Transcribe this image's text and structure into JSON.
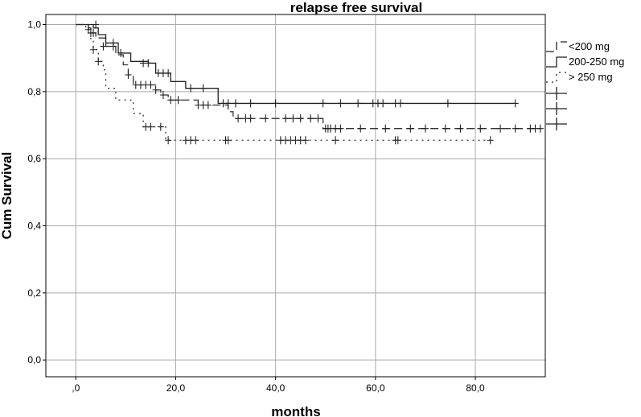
{
  "chart_data": {
    "type": "line",
    "title": "relapse free survival",
    "xlabel": "months",
    "ylabel": "Cum Survival",
    "xlim": [
      -6,
      94
    ],
    "ylim": [
      -0.05,
      1.03
    ],
    "x_ticks": [
      0,
      20,
      40,
      60,
      80
    ],
    "x_tick_labels": [
      ",0",
      "20,0",
      "40,0",
      "60,0",
      "80,0"
    ],
    "y_ticks": [
      0,
      0.2,
      0.4,
      0.6,
      0.8,
      1.0
    ],
    "y_tick_labels": [
      "0,0",
      "0,2",
      "0,4",
      "0,6",
      "0,8",
      "1,0"
    ],
    "grid": true,
    "legend_position": "top-right",
    "series": [
      {
        "name": "<200 mg",
        "style": "dashed",
        "color": "#333333",
        "steps": [
          [
            0,
            1.0
          ],
          [
            2.5,
            0.99
          ],
          [
            3,
            0.975
          ],
          [
            4,
            0.96
          ],
          [
            6,
            0.935
          ],
          [
            8,
            0.91
          ],
          [
            9.5,
            0.88
          ],
          [
            10.5,
            0.85
          ],
          [
            11.5,
            0.82
          ],
          [
            16,
            0.805
          ],
          [
            17,
            0.79
          ],
          [
            18.5,
            0.775
          ],
          [
            24.5,
            0.76
          ],
          [
            30.5,
            0.74
          ],
          [
            31.5,
            0.72
          ],
          [
            49.5,
            0.69
          ],
          [
            93,
            0.69
          ]
        ],
        "censored": [
          [
            3,
            0.975
          ],
          [
            3.5,
            0.975
          ],
          [
            5.5,
            0.935
          ],
          [
            7.5,
            0.935
          ],
          [
            10.5,
            0.85
          ],
          [
            12,
            0.82
          ],
          [
            13,
            0.82
          ],
          [
            14,
            0.82
          ],
          [
            15,
            0.82
          ],
          [
            16,
            0.805
          ],
          [
            17.5,
            0.79
          ],
          [
            19,
            0.775
          ],
          [
            20.5,
            0.775
          ],
          [
            24.5,
            0.76
          ],
          [
            25.5,
            0.76
          ],
          [
            26.5,
            0.76
          ],
          [
            32.5,
            0.72
          ],
          [
            34,
            0.72
          ],
          [
            35,
            0.72
          ],
          [
            38,
            0.72
          ],
          [
            42,
            0.72
          ],
          [
            43.5,
            0.72
          ],
          [
            45,
            0.72
          ],
          [
            47,
            0.72
          ],
          [
            48.5,
            0.72
          ],
          [
            50,
            0.69
          ],
          [
            50.5,
            0.69
          ],
          [
            51,
            0.69
          ],
          [
            52,
            0.69
          ],
          [
            53,
            0.69
          ],
          [
            57,
            0.69
          ],
          [
            62,
            0.69
          ],
          [
            67,
            0.69
          ],
          [
            70,
            0.69
          ],
          [
            74,
            0.69
          ],
          [
            77,
            0.69
          ],
          [
            81,
            0.69
          ],
          [
            85,
            0.69
          ],
          [
            88,
            0.69
          ],
          [
            91,
            0.69
          ],
          [
            92,
            0.69
          ],
          [
            93,
            0.69
          ]
        ]
      },
      {
        "name": "200-250 mg",
        "style": "solid",
        "color": "#222222",
        "steps": [
          [
            0,
            1.0
          ],
          [
            3.5,
            0.99
          ],
          [
            4.5,
            0.97
          ],
          [
            6,
            0.945
          ],
          [
            8.5,
            0.915
          ],
          [
            11,
            0.89
          ],
          [
            14.5,
            0.885
          ],
          [
            16,
            0.855
          ],
          [
            19,
            0.83
          ],
          [
            22,
            0.81
          ],
          [
            28.5,
            0.765
          ],
          [
            88,
            0.765
          ]
        ],
        "censored": [
          [
            4,
            1.0
          ],
          [
            7.5,
            0.945
          ],
          [
            9,
            0.915
          ],
          [
            13.5,
            0.885
          ],
          [
            14.5,
            0.885
          ],
          [
            16.5,
            0.855
          ],
          [
            17.5,
            0.855
          ],
          [
            18.5,
            0.855
          ],
          [
            23,
            0.81
          ],
          [
            25.5,
            0.81
          ],
          [
            29.5,
            0.765
          ],
          [
            30.5,
            0.765
          ],
          [
            32,
            0.765
          ],
          [
            35,
            0.765
          ],
          [
            40,
            0.765
          ],
          [
            49.5,
            0.765
          ],
          [
            53,
            0.765
          ],
          [
            56.5,
            0.765
          ],
          [
            59.5,
            0.765
          ],
          [
            60.5,
            0.765
          ],
          [
            61.5,
            0.765
          ],
          [
            64,
            0.765
          ],
          [
            65,
            0.765
          ],
          [
            74.5,
            0.765
          ],
          [
            88,
            0.765
          ]
        ]
      },
      {
        "name": "> 250 mg",
        "style": "dotted",
        "color": "#333333",
        "steps": [
          [
            0,
            1.0
          ],
          [
            2,
            0.985
          ],
          [
            3,
            0.95
          ],
          [
            3.5,
            0.925
          ],
          [
            4.5,
            0.89
          ],
          [
            5.5,
            0.865
          ],
          [
            6,
            0.81
          ],
          [
            8,
            0.775
          ],
          [
            11.5,
            0.735
          ],
          [
            13.5,
            0.695
          ],
          [
            18,
            0.655
          ],
          [
            83,
            0.655
          ]
        ],
        "censored": [
          [
            2.5,
            0.985
          ],
          [
            3.5,
            0.925
          ],
          [
            4.5,
            0.89
          ],
          [
            14,
            0.695
          ],
          [
            15,
            0.695
          ],
          [
            17,
            0.695
          ],
          [
            18.5,
            0.655
          ],
          [
            22,
            0.655
          ],
          [
            23,
            0.655
          ],
          [
            24,
            0.655
          ],
          [
            30,
            0.655
          ],
          [
            30.5,
            0.655
          ],
          [
            41,
            0.655
          ],
          [
            42,
            0.655
          ],
          [
            43,
            0.655
          ],
          [
            44,
            0.655
          ],
          [
            45,
            0.655
          ],
          [
            46,
            0.655
          ],
          [
            52,
            0.655
          ],
          [
            64,
            0.655
          ],
          [
            64.5,
            0.655
          ],
          [
            83,
            0.655
          ]
        ]
      }
    ],
    "extra_legend_marks": 3
  }
}
